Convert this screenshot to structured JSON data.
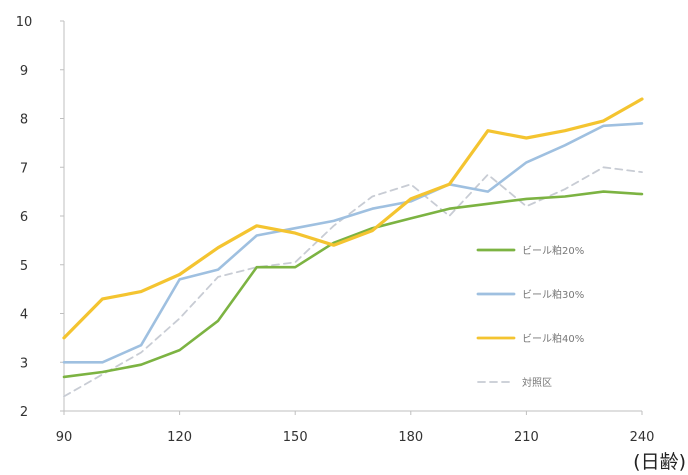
{
  "chart_data": {
    "type": "line",
    "x": [
      90,
      100,
      110,
      120,
      130,
      140,
      150,
      160,
      170,
      180,
      190,
      200,
      210,
      220,
      230,
      240
    ],
    "xticks": [
      90,
      120,
      150,
      180,
      210,
      240
    ],
    "xlim": [
      90,
      240
    ],
    "yticks": [
      2,
      3,
      4,
      5,
      6,
      7,
      8,
      9,
      10
    ],
    "ylim": [
      2,
      10
    ],
    "xunit": "(日齢)",
    "grid": false,
    "legend_position": "right",
    "series": [
      {
        "name": "ビール粕20%",
        "color": "#7cb342",
        "dashed": false,
        "values": [
          2.7,
          2.8,
          2.95,
          3.25,
          3.85,
          4.95,
          4.95,
          5.45,
          5.75,
          5.95,
          6.15,
          6.25,
          6.35,
          6.4,
          6.5,
          6.45
        ]
      },
      {
        "name": "ビール粕30%",
        "color": "#9fc0e0",
        "dashed": false,
        "values": [
          3.0,
          3.0,
          3.35,
          4.7,
          4.9,
          5.6,
          5.75,
          5.9,
          6.15,
          6.3,
          6.65,
          6.5,
          7.1,
          7.45,
          7.85,
          7.9
        ]
      },
      {
        "name": "ビール粕40%",
        "color": "#f4c430",
        "dashed": false,
        "values": [
          3.5,
          4.3,
          4.45,
          4.8,
          5.35,
          5.8,
          5.65,
          5.4,
          5.7,
          6.35,
          6.65,
          7.75,
          7.6,
          7.75,
          7.95,
          8.4
        ]
      },
      {
        "name": "対照区",
        "color": "#c8ccd4",
        "dashed": true,
        "values": [
          2.3,
          2.75,
          3.2,
          3.9,
          4.75,
          4.95,
          5.05,
          5.8,
          6.4,
          6.65,
          6.0,
          6.85,
          6.2,
          6.55,
          7.0,
          6.9
        ]
      }
    ]
  }
}
